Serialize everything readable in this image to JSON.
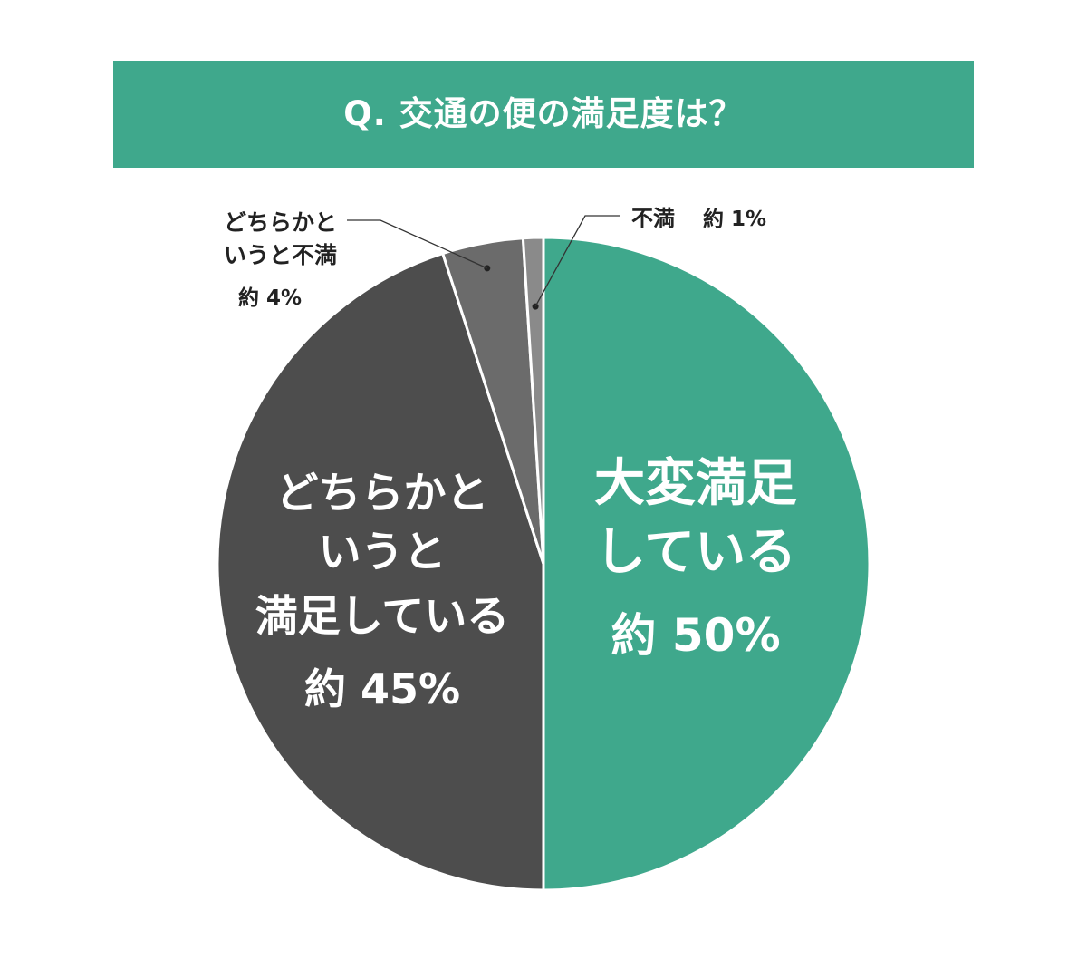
{
  "title": "Q. 交通の便の満足度は？",
  "colors": {
    "banner": "#3fa88c"
  },
  "chart_data": {
    "type": "pie",
    "title": "Q. 交通の便の満足度は？",
    "start_angle_deg": 0,
    "direction": "clockwise",
    "slices": [
      {
        "label_lines": [
          "大変満足",
          "している"
        ],
        "value_label": "約 50%",
        "value": 50,
        "color": "#3fa88c"
      },
      {
        "label_lines": [
          "どちらかと",
          "いうと",
          "満足している"
        ],
        "value_label": "約 45%",
        "value": 45,
        "color": "#4d4d4d"
      },
      {
        "label_lines": [
          "どちらかと",
          "いうと不満"
        ],
        "value_label": "約 4%",
        "value": 4,
        "color": "#6b6b6b"
      },
      {
        "label_lines": [
          "不満"
        ],
        "value_label": "約 1%",
        "value": 1,
        "color": "#8a8a8a"
      }
    ]
  }
}
